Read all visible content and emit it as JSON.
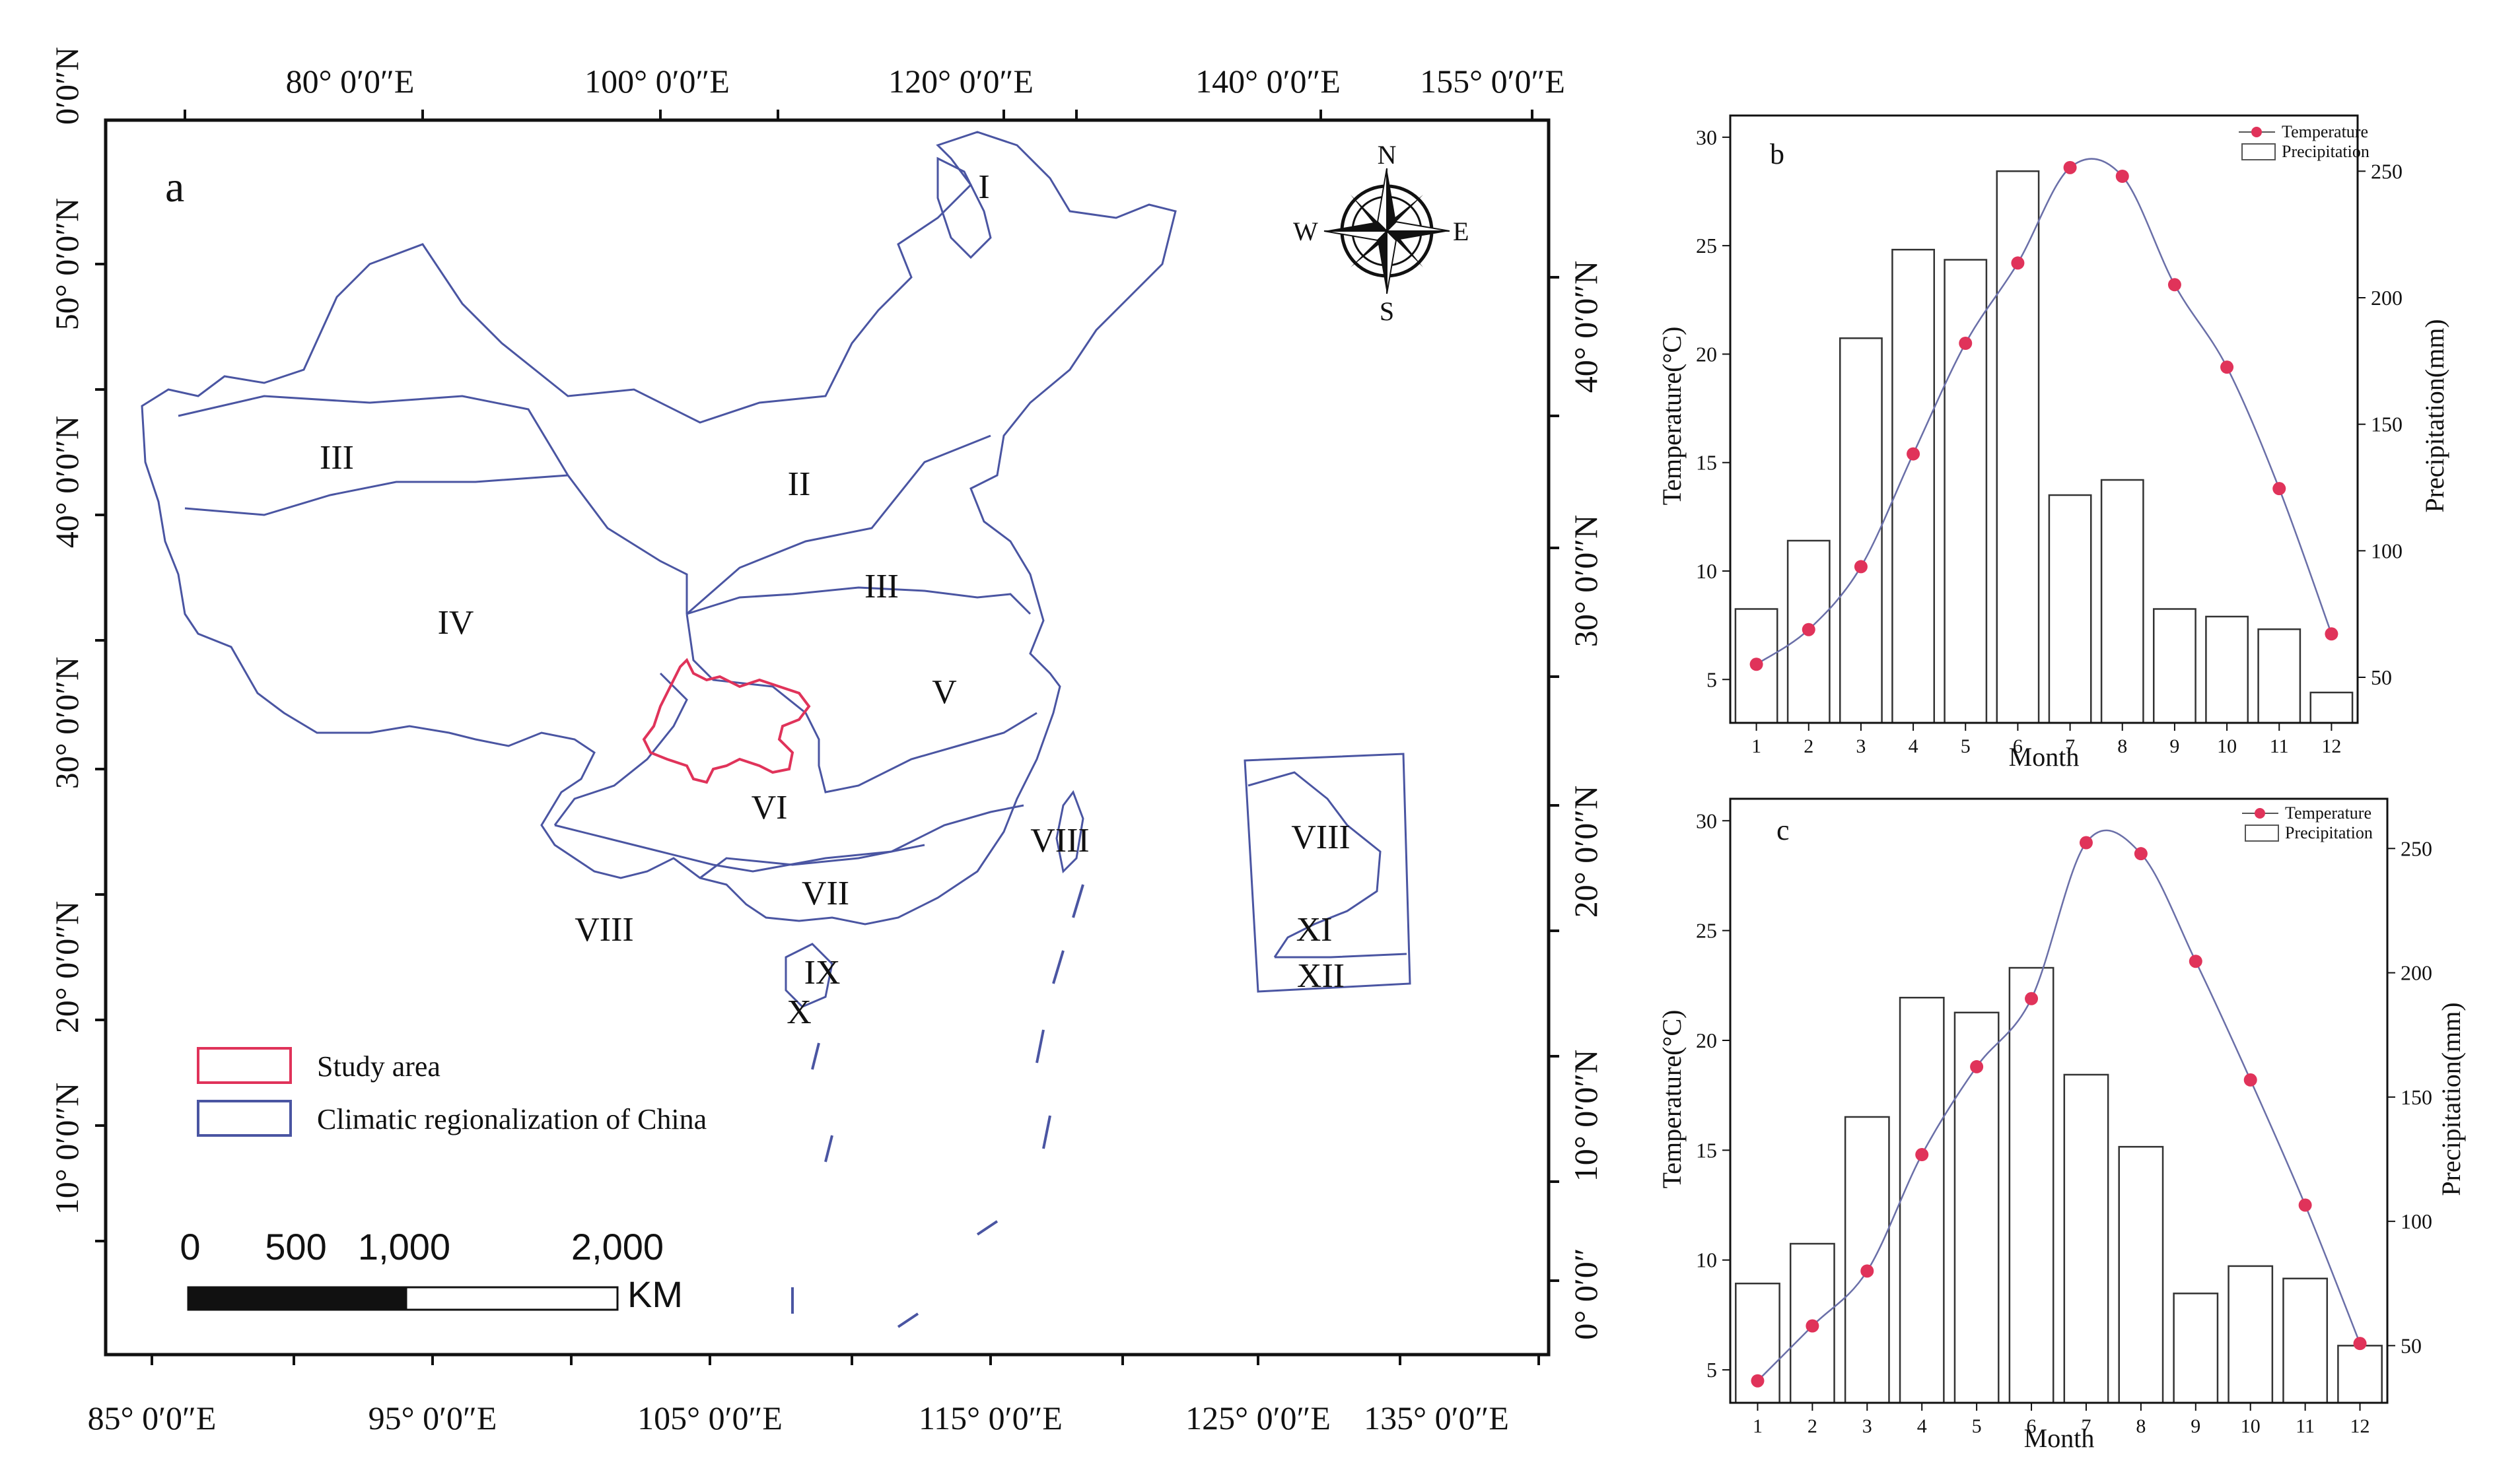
{
  "map": {
    "panel_label": "a",
    "top_lon_labels": [
      "80° 0′0″E",
      "100° 0′0″E",
      "120° 0′0″E",
      "140° 0′0″E",
      "155° 0′0″E"
    ],
    "bottom_lon_labels": [
      "85° 0′0″E",
      "95° 0′0″E",
      "105° 0′0″E",
      "115° 0′0″E",
      "125° 0′0″E",
      "135° 0′0″E"
    ],
    "left_lat_labels": [
      "0′0″N",
      "50° 0′0″N",
      "40° 0′0″N",
      "30° 0′0″N",
      "20° 0′0″N",
      "10° 0′0″N"
    ],
    "right_lat_labels": [
      "40° 0′0″N",
      "30° 0′0″N",
      "20° 0′0″N",
      "10° 0′0″N",
      "0° 0′0″"
    ],
    "regions": [
      "I",
      "II",
      "III",
      "III",
      "IV",
      "V",
      "VI",
      "VII",
      "VIII",
      "VIII",
      "VIII",
      "IX",
      "X",
      "XI",
      "XII"
    ],
    "compass": {
      "n": "N",
      "s": "S",
      "e": "E",
      "w": "W"
    },
    "legend": {
      "study_area": "Study area",
      "climatic": "Climatic regionalization of China"
    },
    "scale_bar": {
      "ticks": [
        "0",
        "500",
        "1,000",
        "2,000"
      ],
      "unit": "KM"
    },
    "colors": {
      "study_area": "#e0335a",
      "boundary": "#4a55a2"
    }
  },
  "chart_data": [
    {
      "type": "bar+line",
      "panel_label": "b",
      "categories": [
        "1",
        "2",
        "3",
        "4",
        "5",
        "6",
        "7",
        "8",
        "9",
        "10",
        "11",
        "12"
      ],
      "xlabel": "Month",
      "ylabel_left": "Temperature(°C)",
      "ylabel_right": "Precipitation(mm)",
      "left_ticks": [
        "5",
        "10",
        "15",
        "20",
        "25",
        "30"
      ],
      "right_ticks": [
        "50",
        "100",
        "150",
        "200",
        "250"
      ],
      "ylim_left": [
        3,
        31
      ],
      "ylim_right": [
        32,
        272
      ],
      "legend_placement": "top-right",
      "series": [
        {
          "name": "Temperature",
          "kind": "line",
          "color": "#e0335a",
          "values": [
            5.7,
            7.3,
            10.2,
            15.4,
            20.5,
            24.2,
            28.6,
            28.2,
            23.2,
            19.4,
            13.8,
            7.1
          ]
        },
        {
          "name": "Precipitation",
          "kind": "bar",
          "values": [
            77,
            104,
            184,
            219,
            215,
            250,
            122,
            128,
            77,
            74,
            69,
            44
          ]
        }
      ]
    },
    {
      "type": "bar+line",
      "panel_label": "c",
      "categories": [
        "1",
        "2",
        "3",
        "4",
        "5",
        "6",
        "7",
        "8",
        "9",
        "10",
        "11",
        "12"
      ],
      "xlabel": "Month",
      "ylabel_left": "Temperature(°C)",
      "ylabel_right": "Precipitation(mm)",
      "left_ticks": [
        "5",
        "10",
        "15",
        "20",
        "25",
        "30"
      ],
      "right_ticks": [
        "50",
        "100",
        "150",
        "200",
        "250"
      ],
      "ylim_left": [
        3.5,
        31
      ],
      "ylim_right": [
        27,
        270
      ],
      "legend_placement": "top-right",
      "series": [
        {
          "name": "Temperature",
          "kind": "line",
          "color": "#e0335a",
          "values": [
            4.5,
            7.0,
            9.5,
            14.8,
            18.8,
            21.9,
            29.0,
            28.5,
            23.6,
            18.2,
            12.5,
            6.2
          ]
        },
        {
          "name": "Precipitation",
          "kind": "bar",
          "values": [
            75,
            91,
            142,
            190,
            184,
            202,
            159,
            130,
            71,
            82,
            77,
            50
          ]
        }
      ]
    }
  ]
}
